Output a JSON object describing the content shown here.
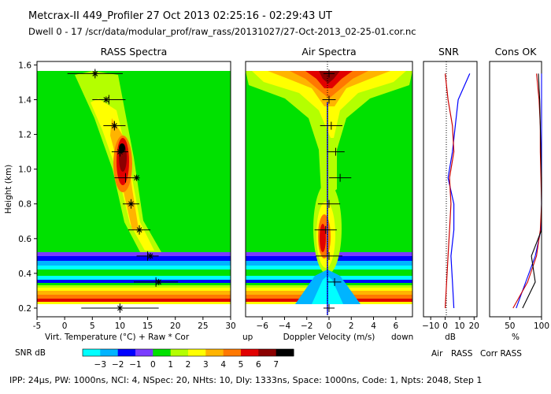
{
  "header": {
    "line1": "Metcrax-II  449_Profiler  27 Oct 2013  02:25:16 - 02:29:43 UT",
    "line2": "Dwell  0 - 17   /scr/data/modular_prof/raw_rass/20131027/27-Oct-2013_02-25-01.cor.nc"
  },
  "footer": {
    "params": "IPP: 24µs, PW: 1000ns, NCI: 4, NSpec: 20, NHts: 10, Dly: 1333ns, Space: 1000ns, Code: 1, Npts: 2048, Step 1"
  },
  "colors": {
    "background": "#00e100",
    "palette": [
      "#00ffff",
      "#00b4ff",
      "#0000ff",
      "#7a3cff",
      "#00e100",
      "#b4ff00",
      "#ffff00",
      "#ffb400",
      "#ff7800",
      "#e10000",
      "#8b0000",
      "#000000"
    ],
    "air_line": "#0000ff",
    "rass_line": "#cc0000",
    "corr_line": "#000000"
  },
  "chart_data": [
    {
      "id": "rass",
      "type": "heatmap",
      "title": "RASS Spectra",
      "xlabel": "Virt. Temperature (°C)  + Raw  * Cor",
      "ylabel": "Height (km)",
      "xlim": [
        -5,
        30
      ],
      "ylim": [
        0.15,
        1.62
      ],
      "xticks": [
        -5,
        0,
        5,
        10,
        15,
        20,
        25,
        30
      ],
      "yticks": [
        0.2,
        0.4,
        0.6,
        0.8,
        1.0,
        1.2,
        1.4,
        1.6
      ],
      "raw_points": [
        {
          "h": 1.55,
          "t": 5.5,
          "err": 5
        },
        {
          "h": 1.4,
          "t": 8.0,
          "err": 3
        },
        {
          "h": 1.25,
          "t": 9.0,
          "err": 2
        },
        {
          "h": 1.1,
          "t": 10.0,
          "err": 1.5
        },
        {
          "h": 0.95,
          "t": 11.0,
          "err": 2
        },
        {
          "h": 0.8,
          "t": 12.0,
          "err": 1.5
        },
        {
          "h": 0.65,
          "t": 13.5,
          "err": 2
        },
        {
          "h": 0.5,
          "t": 15.0,
          "err": 2
        },
        {
          "h": 0.35,
          "t": 16.5,
          "err": 4
        },
        {
          "h": 0.2,
          "t": 10.0,
          "err": 7
        }
      ],
      "cor_points": [
        {
          "h": 1.55,
          "t": 5.5
        },
        {
          "h": 1.4,
          "t": 7.5
        },
        {
          "h": 1.25,
          "t": 9.0
        },
        {
          "h": 1.1,
          "t": 10.0
        },
        {
          "h": 0.95,
          "t": 13.0
        },
        {
          "h": 0.8,
          "t": 12.0
        },
        {
          "h": 0.65,
          "t": 13.5
        },
        {
          "h": 0.5,
          "t": 15.5
        },
        {
          "h": 0.35,
          "t": 17.0
        },
        {
          "h": 0.2,
          "t": 10.0
        }
      ]
    },
    {
      "id": "air",
      "type": "heatmap",
      "title": "Air Spectra",
      "xlabel": "Doppler Velocity (m/s)",
      "xlabel_left": "up",
      "xlabel_right": "down",
      "xlim": [
        -7.5,
        7.5
      ],
      "ylim": [
        0.15,
        1.62
      ],
      "xticks": [
        -6,
        -4,
        -2,
        0,
        2,
        4,
        6
      ],
      "points": [
        {
          "h": 1.55,
          "v": 0.0,
          "err": 0.5
        },
        {
          "h": 1.4,
          "v": 0.0,
          "err": 0.6
        },
        {
          "h": 1.25,
          "v": 0.2,
          "err": 1.0
        },
        {
          "h": 1.1,
          "v": 0.6,
          "err": 0.8
        },
        {
          "h": 0.95,
          "v": 1.0,
          "err": 1.0
        },
        {
          "h": 0.8,
          "v": 0.0,
          "err": 1.0
        },
        {
          "h": 0.65,
          "v": -0.3,
          "err": 1.0
        },
        {
          "h": 0.5,
          "v": 0.0,
          "err": 1.2
        },
        {
          "h": 0.35,
          "v": 0.5,
          "err": 0.6
        },
        {
          "h": 0.2,
          "v": 0.0,
          "err": 0.5
        }
      ]
    },
    {
      "id": "snr",
      "type": "line",
      "title": "SNR",
      "xlabel": "dB",
      "xlim": [
        -15,
        22
      ],
      "ylim": [
        0.15,
        1.62
      ],
      "xticks": [
        -10,
        0,
        10,
        20
      ],
      "xtick_labels": [
        "−10",
        "0",
        "10",
        "20"
      ],
      "series": [
        {
          "name": "Air",
          "heights": [
            1.55,
            1.4,
            1.25,
            1.1,
            0.95,
            0.8,
            0.65,
            0.5,
            0.35,
            0.2
          ],
          "values": [
            17,
            9,
            7,
            5,
            2,
            6,
            6,
            4,
            5,
            6
          ]
        },
        {
          "name": "RASS",
          "heights": [
            1.55,
            1.4,
            1.25,
            1.1,
            0.95,
            0.8,
            0.65,
            0.5,
            0.35,
            0.2
          ],
          "values": [
            0,
            2,
            5,
            6,
            3,
            4,
            3,
            2,
            1,
            0
          ]
        }
      ]
    },
    {
      "id": "cons",
      "type": "line",
      "title": "Cons OK",
      "xlabel": "%",
      "xlim": [
        18,
        100
      ],
      "ylim": [
        0.15,
        1.62
      ],
      "xticks": [
        50,
        100
      ],
      "series": [
        {
          "name": "Air",
          "heights": [
            1.55,
            1.4,
            1.25,
            1.1,
            0.95,
            0.8,
            0.65,
            0.5,
            0.35,
            0.2
          ],
          "values": [
            100,
            100,
            100,
            100,
            100,
            100,
            99,
            90,
            75,
            60
          ]
        },
        {
          "name": "RASS",
          "heights": [
            1.55,
            1.4,
            1.25,
            1.1,
            0.95,
            0.8,
            0.65,
            0.5,
            0.35,
            0.2
          ],
          "values": [
            92,
            96,
            98,
            98,
            99,
            100,
            98,
            92,
            78,
            55
          ]
        },
        {
          "name": "Corr RASS",
          "heights": [
            1.55,
            1.4,
            1.25,
            1.1,
            0.95,
            0.8,
            0.65,
            0.5,
            0.35,
            0.2
          ],
          "values": [
            95,
            97,
            98,
            99,
            100,
            100,
            100,
            84,
            90,
            70
          ]
        }
      ]
    }
  ],
  "colorbar": {
    "label": "SNR dB",
    "ticks": [
      "−3",
      "−2",
      "−1",
      "0",
      "1",
      "2",
      "3",
      "4",
      "5",
      "6",
      "7"
    ]
  },
  "legend": [
    {
      "name": "Air",
      "color": "#0000ff"
    },
    {
      "name": "RASS",
      "color": "#cc0000"
    },
    {
      "name": "Corr RASS",
      "color": "#000000"
    }
  ]
}
